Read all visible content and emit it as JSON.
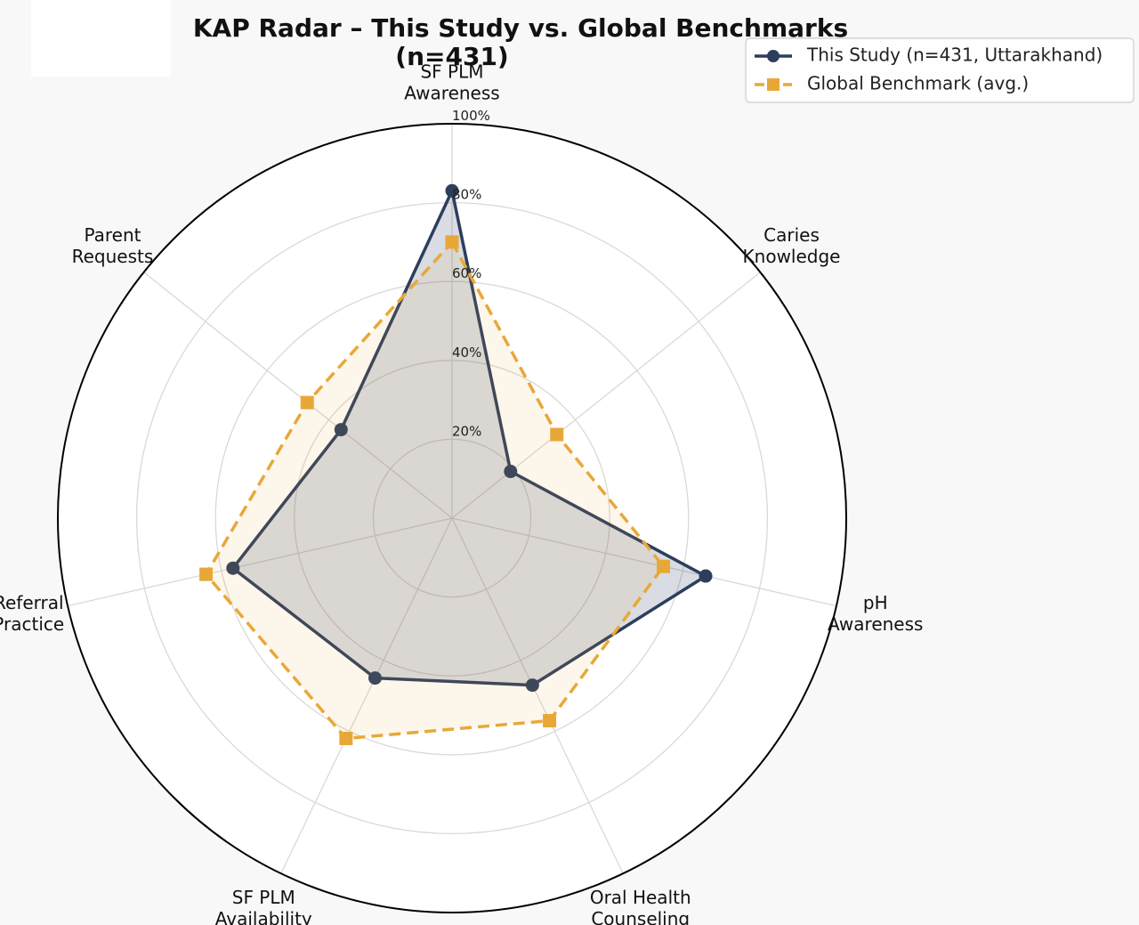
{
  "chart_data": {
    "type": "radar",
    "title": "KAP Radar – This Study vs. Global Benchmarks",
    "subtitle": "(n=431)",
    "categories": [
      [
        "SF PLM",
        "Awareness"
      ],
      [
        "Caries",
        "Knowledge"
      ],
      [
        "pH",
        "Awareness"
      ],
      [
        "Oral Health",
        "Counseling"
      ],
      [
        "SF PLM",
        "Availability"
      ],
      [
        "Referral",
        "Practice"
      ],
      [
        "Parent",
        "Requests"
      ]
    ],
    "rlim": [
      0,
      100
    ],
    "rticks": [
      20,
      40,
      60,
      80,
      100
    ],
    "rtick_labels": [
      "20%",
      "40%",
      "60%",
      "80%",
      "100%"
    ],
    "grid": true,
    "legend_position": "top-right",
    "series": [
      {
        "name": "This Study (n=431, Uttarakhand)",
        "values": [
          83,
          19,
          66,
          47,
          45,
          57,
          36
        ],
        "color": "#2c3e5c",
        "fill": "#2c3e5c",
        "marker": "circle",
        "linestyle": "solid"
      },
      {
        "name": "Global Benchmark (avg.)",
        "values": [
          70,
          34,
          55,
          57,
          62,
          64,
          47
        ],
        "color": "#e8a838",
        "fill": "#e8a838",
        "marker": "square",
        "linestyle": "dashed"
      }
    ]
  }
}
